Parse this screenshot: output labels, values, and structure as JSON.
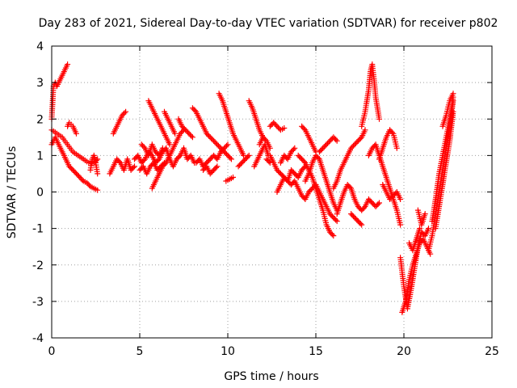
{
  "chart_data": {
    "type": "scatter",
    "title": "Day 283 of 2021, Sidereal Day-to-day VTEC variation (SDTVAR) for receiver p802",
    "xlabel": "GPS time / hours",
    "ylabel": "SDTVAR / TECUs",
    "xlim": [
      0,
      25
    ],
    "ylim": [
      -4,
      4
    ],
    "grid": true,
    "marker": "+",
    "color": "#ff0000",
    "xticks": [
      "0",
      "5",
      "10",
      "15",
      "20",
      "25"
    ],
    "yticks": [
      "-4",
      "-3",
      "-2",
      "-1",
      "0",
      "1",
      "2",
      "3",
      "4"
    ],
    "series": [
      {
        "name": "SDTVAR",
        "x": [
          0.0,
          0.1,
          0.2,
          0.3,
          0.4,
          0.5,
          0.6,
          0.7,
          0.8,
          0.9
        ],
        "y": [
          2.0,
          2.9,
          3.0,
          2.9,
          3.0,
          3.1,
          3.2,
          3.3,
          3.4,
          3.5
        ]
      },
      {
        "name": "SDTVAR",
        "x": [
          0.0,
          0.2,
          0.4,
          0.6,
          0.8,
          1.0,
          1.2,
          1.4,
          1.6,
          1.8,
          2.0,
          2.2,
          2.4,
          2.6
        ],
        "y": [
          1.3,
          1.5,
          1.3,
          1.1,
          0.9,
          0.7,
          0.6,
          0.5,
          0.4,
          0.3,
          0.25,
          0.15,
          0.1,
          0.05
        ]
      },
      {
        "name": "SDTVAR",
        "x": [
          0.0,
          0.3,
          0.6,
          0.9,
          1.2,
          1.5,
          1.8,
          2.1,
          2.4,
          2.6
        ],
        "y": [
          1.7,
          1.6,
          1.5,
          1.3,
          1.1,
          1.0,
          0.9,
          0.8,
          0.8,
          0.9
        ]
      },
      {
        "name": "SDTVAR",
        "x": [
          0.9,
          1.0,
          1.1,
          1.2,
          1.3,
          1.4
        ],
        "y": [
          1.8,
          1.9,
          1.85,
          1.8,
          1.7,
          1.6
        ]
      },
      {
        "name": "SDTVAR",
        "x": [
          2.2,
          2.3,
          2.4,
          2.5,
          2.6
        ],
        "y": [
          0.6,
          0.9,
          1.0,
          0.8,
          0.5
        ]
      },
      {
        "name": "SDTVAR",
        "x": [
          3.3,
          3.5,
          3.7,
          3.9,
          4.1,
          4.3,
          4.5,
          4.7
        ],
        "y": [
          0.5,
          0.7,
          0.9,
          0.8,
          0.6,
          0.9,
          0.6,
          0.7
        ]
      },
      {
        "name": "SDTVAR",
        "x": [
          3.5,
          3.7,
          3.9,
          4.0,
          4.2
        ],
        "y": [
          1.6,
          1.8,
          2.0,
          2.1,
          2.2
        ]
      },
      {
        "name": "SDTVAR",
        "x": [
          4.7,
          4.9,
          5.1,
          5.3,
          5.5,
          5.7,
          5.9,
          6.1,
          6.3,
          6.5,
          6.7,
          6.9,
          7.1,
          7.3,
          7.5,
          7.7,
          7.9,
          8.1
        ],
        "y": [
          0.9,
          1.0,
          0.8,
          0.9,
          1.1,
          1.0,
          0.8,
          0.9,
          1.1,
          1.2,
          0.9,
          0.7,
          0.9,
          1.0,
          1.2,
          0.9,
          1.0,
          0.8
        ]
      },
      {
        "name": "SDTVAR",
        "x": [
          5.0,
          5.2,
          5.4,
          5.6,
          5.8,
          6.0,
          6.2,
          6.4
        ],
        "y": [
          0.6,
          0.7,
          0.5,
          0.7,
          0.8,
          0.6,
          0.7,
          0.8
        ]
      },
      {
        "name": "SDTVAR",
        "x": [
          5.1,
          5.3,
          5.5,
          5.7,
          5.9,
          6.1,
          6.3
        ],
        "y": [
          1.3,
          1.2,
          1.0,
          1.3,
          1.1,
          1.0,
          1.2
        ]
      },
      {
        "name": "SDTVAR",
        "x": [
          5.5,
          5.7,
          5.9,
          6.1,
          6.3,
          6.5,
          6.7
        ],
        "y": [
          2.5,
          2.3,
          2.1,
          1.9,
          1.7,
          1.5,
          1.3
        ]
      },
      {
        "name": "SDTVAR",
        "x": [
          5.7,
          5.9,
          6.1,
          6.3,
          6.5,
          6.7,
          6.9,
          7.1,
          7.3,
          7.5
        ],
        "y": [
          0.1,
          0.3,
          0.5,
          0.7,
          0.8,
          1.0,
          1.2,
          1.4,
          1.6,
          1.7
        ]
      },
      {
        "name": "SDTVAR",
        "x": [
          6.4,
          6.6,
          6.8,
          7.0
        ],
        "y": [
          2.2,
          2.0,
          1.8,
          1.6
        ]
      },
      {
        "name": "SDTVAR",
        "x": [
          7.2,
          7.4,
          7.6,
          7.8,
          8.0
        ],
        "y": [
          2.0,
          1.8,
          1.7,
          1.6,
          1.5
        ]
      },
      {
        "name": "SDTVAR",
        "x": [
          8.0,
          8.2,
          8.4,
          8.6,
          8.8,
          9.0,
          9.2,
          9.4,
          9.6,
          9.8,
          10.0,
          10.2
        ],
        "y": [
          2.3,
          2.2,
          2.0,
          1.8,
          1.6,
          1.5,
          1.4,
          1.3,
          1.2,
          1.1,
          1.0,
          0.9
        ]
      },
      {
        "name": "SDTVAR",
        "x": [
          8.2,
          8.4,
          8.6,
          8.8,
          9.0,
          9.2,
          9.4,
          9.6,
          9.8,
          10.0
        ],
        "y": [
          0.8,
          0.9,
          0.7,
          0.8,
          0.9,
          1.0,
          0.9,
          1.1,
          1.2,
          1.3
        ]
      },
      {
        "name": "SDTVAR",
        "x": [
          8.6,
          8.8,
          9.0,
          9.2,
          9.4
        ],
        "y": [
          0.6,
          0.7,
          0.5,
          0.6,
          0.7
        ]
      },
      {
        "name": "SDTVAR",
        "x": [
          9.5,
          9.7,
          9.9,
          10.1,
          10.3,
          10.5,
          10.7,
          10.9
        ],
        "y": [
          2.7,
          2.5,
          2.2,
          1.9,
          1.6,
          1.4,
          1.2,
          1.0
        ]
      },
      {
        "name": "SDTVAR",
        "x": [
          9.9,
          10.1,
          10.3
        ],
        "y": [
          0.3,
          0.35,
          0.4
        ]
      },
      {
        "name": "SDTVAR",
        "x": [
          10.6,
          10.8,
          11.0,
          11.2
        ],
        "y": [
          0.7,
          0.8,
          0.9,
          1.0
        ]
      },
      {
        "name": "SDTVAR",
        "x": [
          11.2,
          11.4,
          11.6,
          11.8,
          12.0
        ],
        "y": [
          2.5,
          2.3,
          2.0,
          1.7,
          1.5
        ]
      },
      {
        "name": "SDTVAR",
        "x": [
          11.5,
          11.7,
          11.9,
          12.1,
          12.3
        ],
        "y": [
          0.7,
          0.9,
          1.1,
          1.3,
          1.0
        ]
      },
      {
        "name": "SDTVAR",
        "x": [
          11.8,
          12.0,
          12.2,
          12.4
        ],
        "y": [
          1.3,
          1.5,
          1.4,
          1.2
        ]
      },
      {
        "name": "SDTVAR",
        "x": [
          12.4,
          12.6,
          12.8,
          13.0,
          13.2
        ],
        "y": [
          1.8,
          1.9,
          1.8,
          1.7,
          1.75
        ]
      },
      {
        "name": "SDTVAR",
        "x": [
          12.2,
          12.4
        ],
        "y": [
          0.9,
          0.8
        ]
      },
      {
        "name": "SDTVAR",
        "x": [
          12.4,
          12.6,
          12.8,
          13.0,
          13.2,
          13.4,
          13.6,
          13.8,
          14.0,
          14.2,
          14.4,
          14.6,
          14.8,
          15.0
        ],
        "y": [
          1.0,
          0.8,
          0.6,
          0.5,
          0.4,
          0.3,
          0.2,
          0.3,
          0.1,
          -0.1,
          -0.2,
          0.0,
          0.1,
          0.2
        ]
      },
      {
        "name": "SDTVAR",
        "x": [
          12.8,
          13.0,
          13.2,
          13.4,
          13.6,
          13.8,
          14.0,
          14.2,
          14.4
        ],
        "y": [
          0.0,
          0.2,
          0.4,
          0.3,
          0.6,
          0.5,
          0.4,
          0.6,
          0.7
        ]
      },
      {
        "name": "SDTVAR",
        "x": [
          13.0,
          13.2,
          13.4,
          13.6,
          13.8
        ],
        "y": [
          0.8,
          1.0,
          0.9,
          1.1,
          1.2
        ]
      },
      {
        "name": "SDTVAR",
        "x": [
          14.0,
          14.2,
          14.4,
          14.6,
          14.8,
          15.0,
          15.2,
          15.4,
          15.6,
          15.8,
          16.0
        ],
        "y": [
          1.0,
          0.9,
          0.8,
          0.6,
          0.4,
          0.1,
          -0.2,
          -0.5,
          -0.9,
          -1.1,
          -1.2
        ]
      },
      {
        "name": "SDTVAR",
        "x": [
          14.2,
          14.4,
          14.6,
          14.8,
          15.0
        ],
        "y": [
          1.8,
          1.7,
          1.5,
          1.3,
          1.1
        ]
      },
      {
        "name": "SDTVAR",
        "x": [
          14.4,
          14.6,
          14.8,
          15.0,
          15.2,
          15.4,
          15.6,
          15.8,
          16.0,
          16.2
        ],
        "y": [
          0.3,
          0.5,
          0.8,
          1.0,
          0.9,
          0.6,
          0.3,
          0.0,
          -0.3,
          -0.5
        ]
      },
      {
        "name": "SDTVAR",
        "x": [
          15.0,
          15.2,
          15.4,
          15.6,
          15.8,
          16.0,
          16.2
        ],
        "y": [
          0.2,
          0.0,
          -0.2,
          -0.4,
          -0.6,
          -0.7,
          -0.8
        ]
      },
      {
        "name": "SDTVAR",
        "x": [
          15.2,
          15.4,
          15.6,
          15.8,
          16.0,
          16.2
        ],
        "y": [
          1.1,
          1.2,
          1.3,
          1.4,
          1.5,
          1.4
        ]
      },
      {
        "name": "SDTVAR",
        "x": [
          16.0,
          16.2,
          16.4,
          16.6,
          16.8,
          17.0,
          17.2,
          17.4,
          17.6,
          17.8
        ],
        "y": [
          0.1,
          0.3,
          0.6,
          0.8,
          1.0,
          1.2,
          1.3,
          1.4,
          1.5,
          1.7
        ]
      },
      {
        "name": "SDTVAR",
        "x": [
          16.2,
          16.4,
          16.6,
          16.8,
          17.0,
          17.2,
          17.4,
          17.6,
          17.8,
          18.0,
          18.2,
          18.4,
          18.6
        ],
        "y": [
          -0.6,
          -0.3,
          0.0,
          0.2,
          0.1,
          -0.2,
          -0.4,
          -0.5,
          -0.4,
          -0.2,
          -0.3,
          -0.4,
          -0.3
        ]
      },
      {
        "name": "SDTVAR",
        "x": [
          17.0,
          17.2,
          17.4,
          17.6
        ],
        "y": [
          -0.6,
          -0.7,
          -0.8,
          -0.9
        ]
      },
      {
        "name": "SDTVAR",
        "x": [
          17.6,
          17.8,
          18.0,
          18.1,
          18.2,
          18.3,
          18.4,
          18.6
        ],
        "y": [
          1.8,
          2.2,
          2.8,
          3.3,
          3.5,
          3.1,
          2.6,
          2.0
        ]
      },
      {
        "name": "SDTVAR",
        "x": [
          18.0,
          18.2,
          18.4,
          18.6,
          18.8,
          19.0,
          19.2,
          19.4,
          19.6,
          19.8
        ],
        "y": [
          1.0,
          1.2,
          1.3,
          1.0,
          0.7,
          0.4,
          0.1,
          -0.2,
          -0.5,
          -0.9
        ]
      },
      {
        "name": "SDTVAR",
        "x": [
          18.6,
          18.8,
          19.0,
          19.2,
          19.4,
          19.6
        ],
        "y": [
          0.9,
          1.2,
          1.5,
          1.7,
          1.6,
          1.2
        ]
      },
      {
        "name": "SDTVAR",
        "x": [
          18.8,
          19.0,
          19.2,
          19.4,
          19.6,
          19.8
        ],
        "y": [
          0.2,
          0.0,
          -0.2,
          -0.1,
          0.0,
          -0.2
        ]
      },
      {
        "name": "SDTVAR",
        "x": [
          19.8,
          19.9,
          20.0,
          20.2,
          20.4,
          20.6,
          20.8,
          21.0,
          21.2,
          21.4
        ],
        "y": [
          -1.8,
          -2.2,
          -2.6,
          -3.2,
          -2.7,
          -2.1,
          -1.5,
          -1.1,
          -1.2,
          -1.0
        ]
      },
      {
        "name": "SDTVAR",
        "x": [
          19.9,
          20.1,
          20.3,
          20.5,
          20.7,
          20.9,
          21.1,
          21.3,
          21.5
        ],
        "y": [
          -3.3,
          -3.0,
          -2.4,
          -2.0,
          -1.7,
          -1.4,
          -1.3,
          -1.5,
          -1.7
        ]
      },
      {
        "name": "SDTVAR",
        "x": [
          20.3,
          20.5,
          20.7,
          20.9
        ],
        "y": [
          -1.4,
          -1.6,
          -1.3,
          -1.0
        ]
      },
      {
        "name": "SDTVAR",
        "x": [
          20.8,
          21.0,
          21.2
        ],
        "y": [
          -0.5,
          -0.9,
          -0.6
        ]
      },
      {
        "name": "SDTVAR",
        "x": [
          21.4,
          21.6,
          21.8,
          22.0,
          22.2,
          22.4,
          22.6,
          22.8
        ],
        "y": [
          -1.6,
          -1.2,
          -0.6,
          0.0,
          0.6,
          1.2,
          1.8,
          2.5
        ]
      },
      {
        "name": "SDTVAR",
        "x": [
          21.6,
          21.8,
          22.0,
          22.2,
          22.4,
          22.6,
          22.8
        ],
        "y": [
          -0.8,
          -0.2,
          0.5,
          1.0,
          1.5,
          2.0,
          2.6
        ]
      },
      {
        "name": "SDTVAR",
        "x": [
          21.8,
          22.0,
          22.2,
          22.4,
          22.6,
          22.8
        ],
        "y": [
          -1.0,
          -0.4,
          0.2,
          0.8,
          1.4,
          2.2
        ]
      },
      {
        "name": "SDTVAR",
        "x": [
          22.2,
          22.4,
          22.6,
          22.8
        ],
        "y": [
          1.8,
          2.1,
          2.5,
          2.7
        ]
      }
    ]
  }
}
